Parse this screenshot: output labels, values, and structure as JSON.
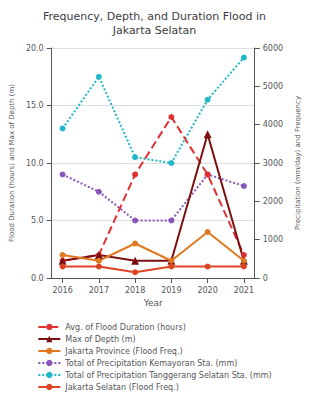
{
  "chart_data": {
    "type": "line",
    "title": "Frequency, Depth, and Duration Flood in\nJakarta Selatan",
    "xlabel": "Year",
    "ylabel": "Flood Duration (hours) and Max of Depth (m)",
    "y2label": "Precipitation (mm/day) and Frequency",
    "x": [
      2016,
      2017,
      2018,
      2019,
      2020,
      2021
    ],
    "xlim": [
      2015.7,
      2021.3
    ],
    "xticks": [
      2016,
      2017,
      2018,
      2019,
      2020,
      2021
    ],
    "ylim": [
      0,
      20
    ],
    "yticks": [
      {
        "value": 0,
        "label": "0.0"
      },
      {
        "value": 5,
        "label": "5.0"
      },
      {
        "value": 10,
        "label": "10.0"
      },
      {
        "value": 15,
        "label": "15.0"
      },
      {
        "value": 20,
        "label": "20.0"
      }
    ],
    "y2lim": [
      0,
      6000
    ],
    "y2ticks": [
      0,
      1000,
      2000,
      3000,
      4000,
      5000,
      6000
    ],
    "grid": true,
    "legend": "bottom",
    "series": [
      {
        "name": "Avg. of Flood Duration (hours)",
        "color": "#e03030",
        "marker": "circle",
        "line_style": "dashed",
        "values": [
          1.5,
          2.0,
          9.0,
          14.0,
          9.0,
          2.0
        ]
      },
      {
        "name": "Max of Depth (m)",
        "color": "#7a1010",
        "marker": "triangle",
        "line_style": "solid",
        "values": [
          1.5,
          2.0,
          1.5,
          1.5,
          12.5,
          1.5
        ]
      },
      {
        "name": "Jakarta Province (Flood Freq.)",
        "color": "#e07820",
        "marker": "circle",
        "line_style": "solid",
        "values": [
          2.0,
          1.5,
          3.0,
          1.5,
          4.0,
          1.5
        ]
      },
      {
        "name": "Total of Precipitation Kemayoran Sta. (mm)",
        "color": "#8855bb",
        "marker": "circle",
        "line_style": "dotted",
        "axis": "y2",
        "values": [
          2700,
          2250,
          1500,
          1500,
          2700,
          2400
        ]
      },
      {
        "name": "Total of Precipitation Tanggerang Selatan Sta. (mm)",
        "color": "#20b8c8",
        "marker": "circle",
        "line_style": "dotted",
        "axis": "y2",
        "values": [
          3900,
          5250,
          3150,
          3000,
          4650,
          5750
        ]
      },
      {
        "name": "Jakarta Selatan (Flood Freq.)",
        "color": "#dd4422",
        "marker": "circle",
        "line_style": "solid",
        "values": [
          1.0,
          1.0,
          0.5,
          1.0,
          1.0,
          1.0
        ]
      }
    ]
  }
}
